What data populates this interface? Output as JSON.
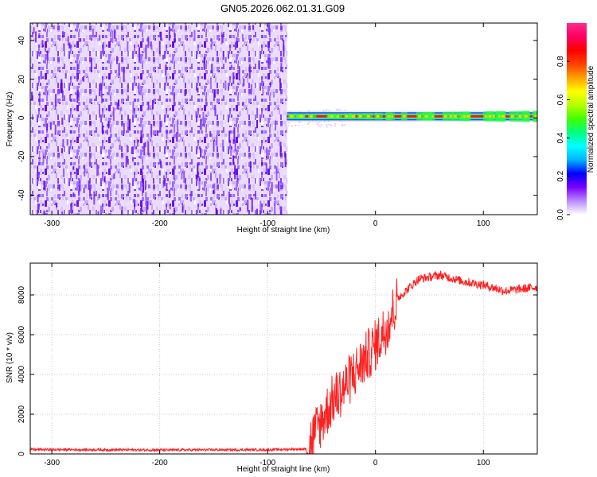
{
  "title": "GN05.2026.062.01.31.G09",
  "chart_data": [
    {
      "type": "heatmap",
      "xlabel": "Height of straight line (km)",
      "ylabel": "Frequency (Hz)",
      "xlim": [
        -320,
        150
      ],
      "ylim": [
        -50,
        49
      ],
      "x_ticks": [
        -300,
        -200,
        -100,
        0,
        100
      ],
      "y_ticks": [
        -40,
        -20,
        0,
        20,
        40
      ],
      "colorbar": {
        "label": "Normalized spectral amplitude",
        "range": [
          0,
          1
        ],
        "ticks": [
          0.0,
          0.2,
          0.4,
          0.6,
          0.8
        ],
        "colors": [
          "#ffffff",
          "#b98cff",
          "#7a00ff",
          "#0000ff",
          "#00b4ff",
          "#00ffff",
          "#00ff80",
          "#40ff00",
          "#b4ff00",
          "#ffff00",
          "#ffa000",
          "#ff4000",
          "#ff0000",
          "#ff0060",
          "#ff2a8a"
        ]
      },
      "regions": [
        {
          "name": "noise",
          "x_range": [
            -320,
            -82
          ],
          "freq_range": [
            -49,
            49
          ],
          "amplitude": 0.12
        },
        {
          "name": "signal",
          "x_range": [
            -82,
            150
          ],
          "freq_center": 0.8,
          "amplitude": 0.95
        }
      ],
      "grid": true
    },
    {
      "type": "line",
      "xlabel": "Height of straight line (km)",
      "ylabel": "SNR (10 * v/v)",
      "xlim": [
        -320,
        150
      ],
      "ylim": [
        0,
        9600
      ],
      "x_ticks": [
        -300,
        -200,
        -100,
        0,
        100
      ],
      "y_ticks": [
        0,
        2000,
        4000,
        6000,
        8000
      ],
      "color": "#ff2020",
      "x": [
        -320,
        -200,
        -100,
        -64,
        -60,
        -50,
        -40,
        -30,
        -20,
        -10,
        0,
        10,
        20,
        40,
        60,
        80,
        100,
        120,
        150
      ],
      "values": [
        220,
        200,
        210,
        250,
        800,
        1800,
        2800,
        3400,
        4200,
        4900,
        5600,
        6500,
        7800,
        8800,
        9000,
        8700,
        8500,
        8200,
        8400
      ],
      "grid": true
    }
  ]
}
